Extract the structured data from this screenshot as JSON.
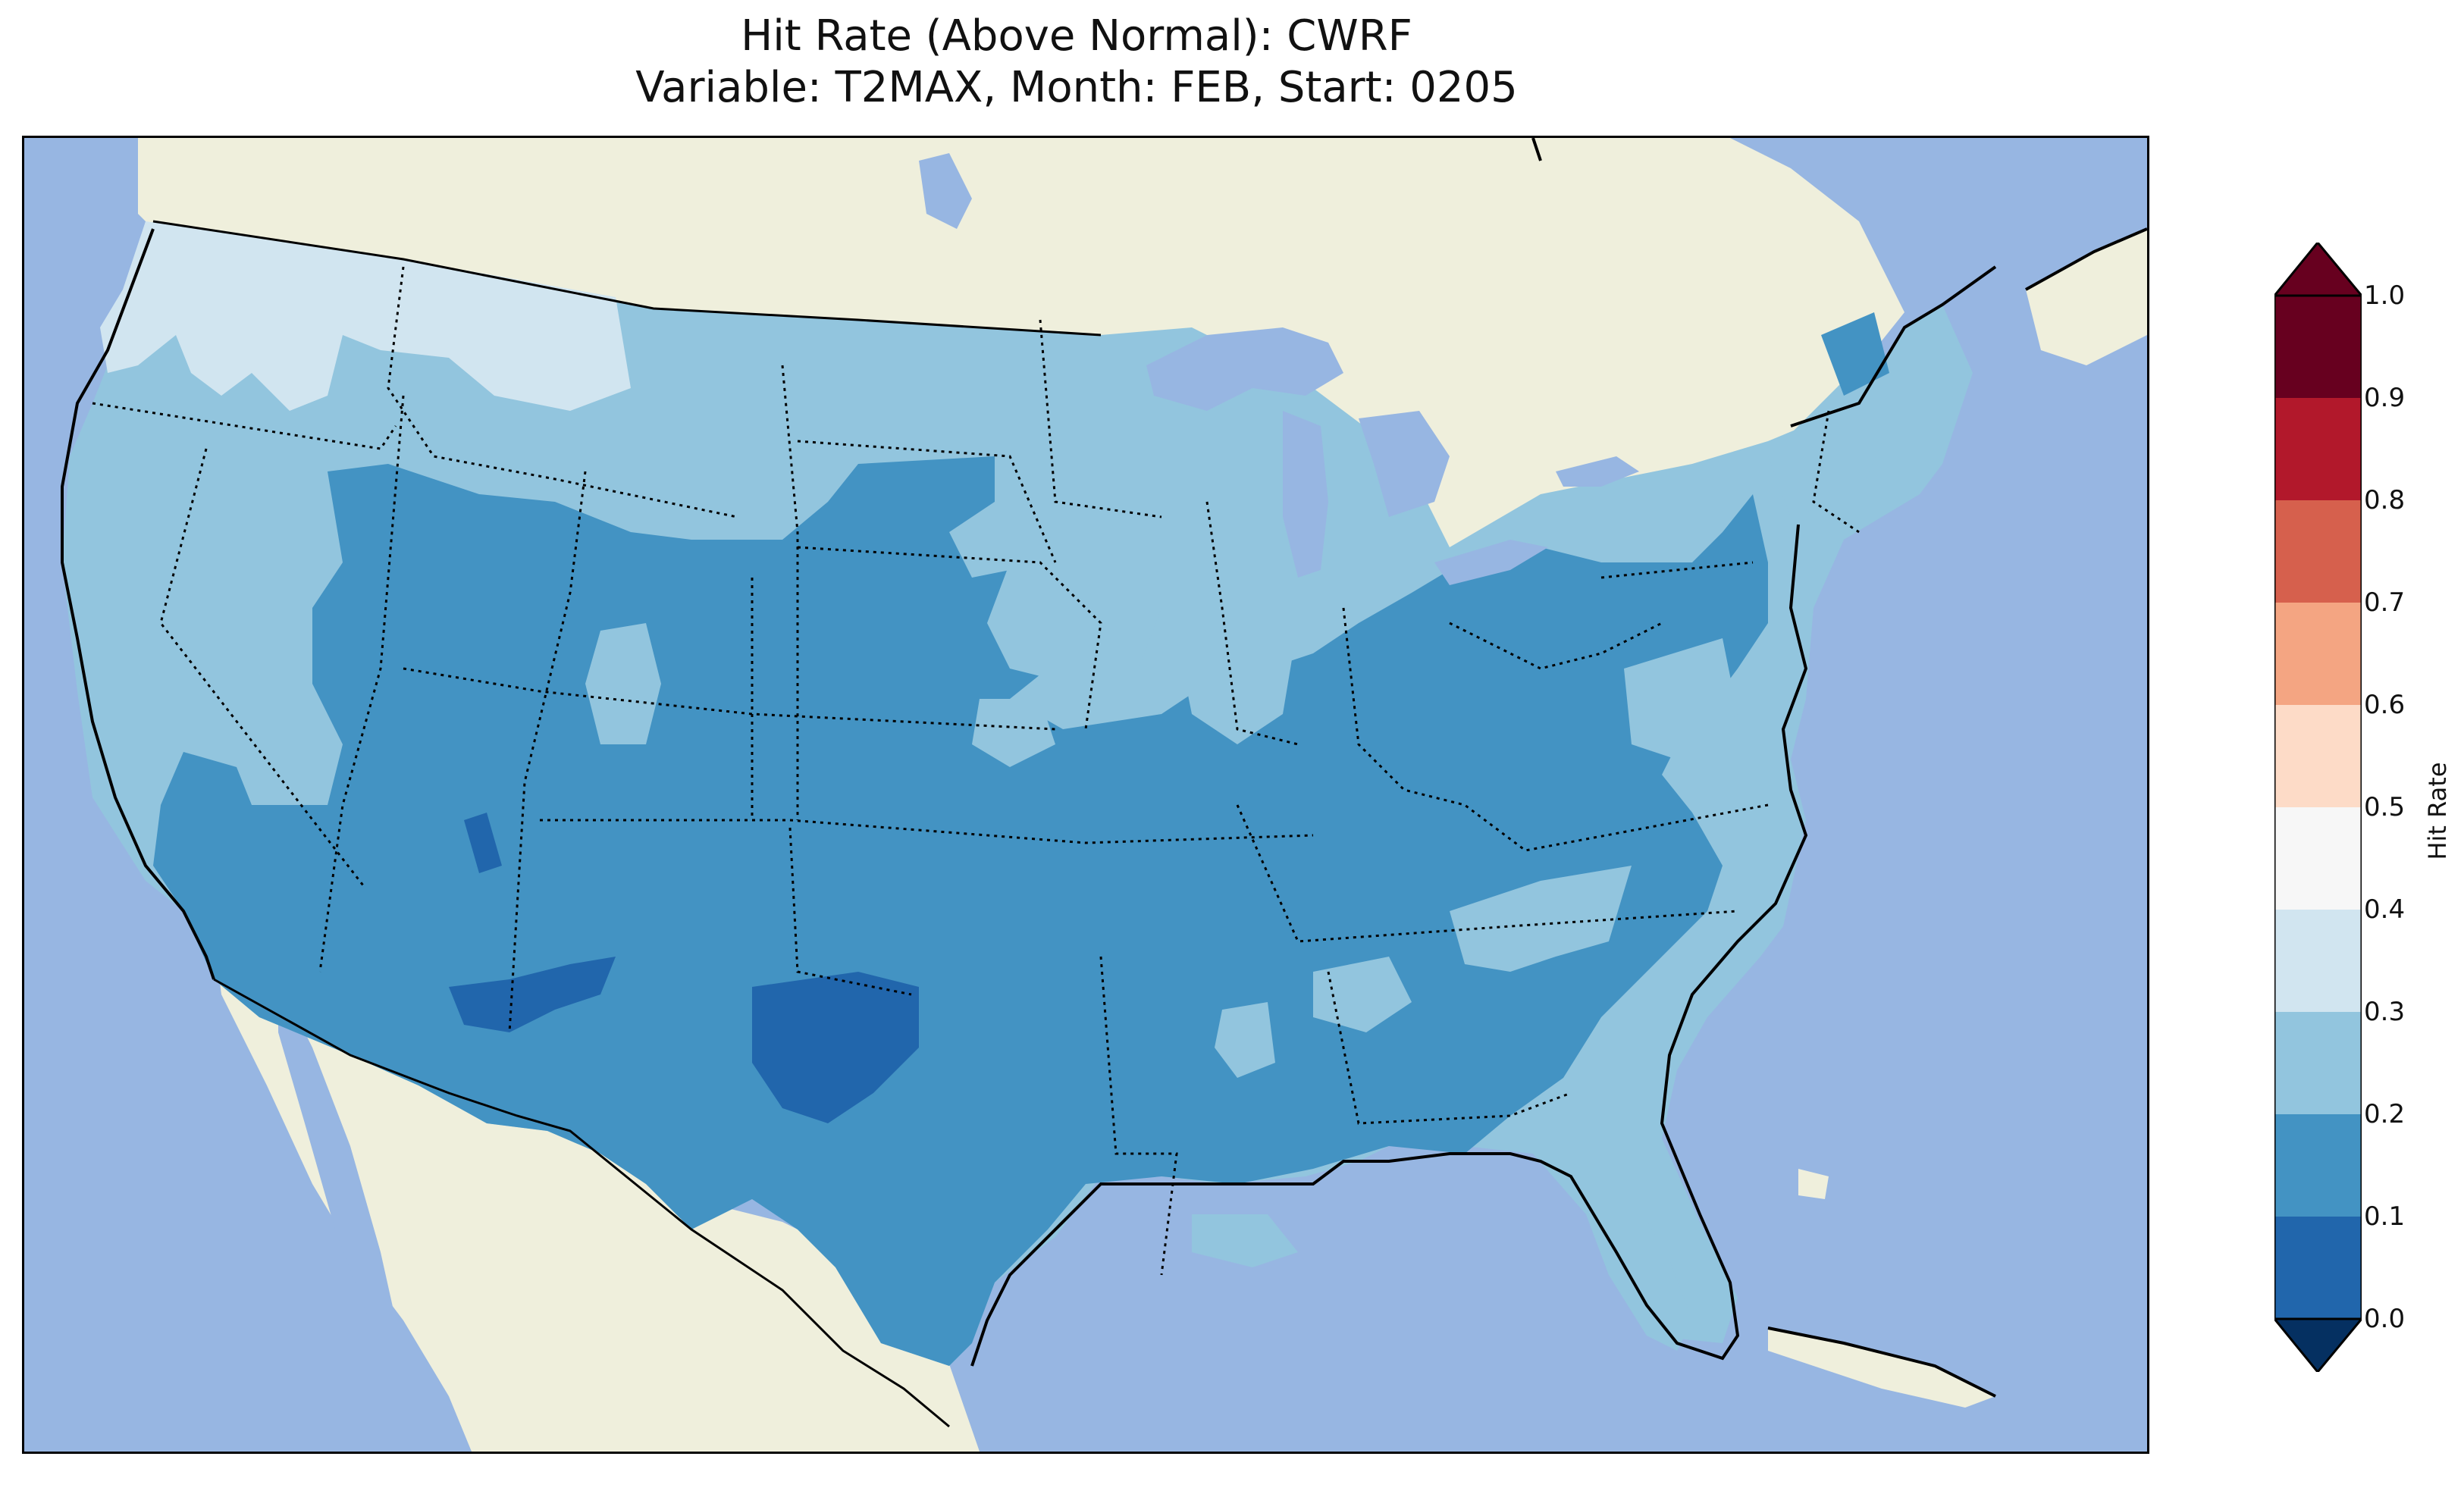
{
  "title": {
    "line1": "Hit Rate (Above Normal): CWRF",
    "line2": "Variable: T2MAX, Month: FEB, Start: 0205"
  },
  "colorbar": {
    "label": "Hit Rate",
    "ticks": [
      "0.0",
      "0.1",
      "0.2",
      "0.3",
      "0.4",
      "0.5",
      "0.6",
      "0.7",
      "0.8",
      "0.9",
      "1.0"
    ],
    "bins": [
      {
        "range": [
          0.0,
          0.1
        ],
        "color": "#053061"
      },
      {
        "range": [
          0.1,
          0.2
        ],
        "color": "#2166ac"
      },
      {
        "range": [
          0.2,
          0.3
        ],
        "color": "#4393c3"
      },
      {
        "range": [
          0.3,
          0.4
        ],
        "color": "#92c5de"
      },
      {
        "range": [
          0.4,
          0.5
        ],
        "color": "#d1e5f0"
      },
      {
        "range": [
          0.5,
          0.6
        ],
        "color": "#f7f7f7"
      },
      {
        "range": [
          0.6,
          0.7
        ],
        "color": "#fddbc7"
      },
      {
        "range": [
          0.7,
          0.8
        ],
        "color": "#f4a582"
      },
      {
        "range": [
          0.8,
          0.9
        ],
        "color": "#d6604d"
      },
      {
        "range": [
          0.9,
          1.0
        ],
        "color": "#b2182b"
      }
    ],
    "extend_low_color": "#053061",
    "extend_high_color": "#67001f"
  },
  "colors": {
    "ocean": "#97b6e2",
    "land": "#efefdc",
    "lakes": "#97b6e2"
  },
  "map": {
    "region": "CONUS",
    "variable": "T2MAX",
    "regions_by_class": [
      {
        "name": "Pacific Northwest / northern Rockies",
        "class": "0.4-0.5"
      },
      {
        "name": "Northern plains / Upper Midwest / California",
        "class": "0.3-0.4"
      },
      {
        "name": "Central US / Southwest / Southeast",
        "class": "0.2-0.3"
      },
      {
        "name": "Southern New Mexico / West Texas / Arizona spots",
        "class": "0.1-0.2"
      },
      {
        "name": "Florida / Carolinas / Great Lakes states patches",
        "class": "0.3-0.4"
      }
    ]
  }
}
